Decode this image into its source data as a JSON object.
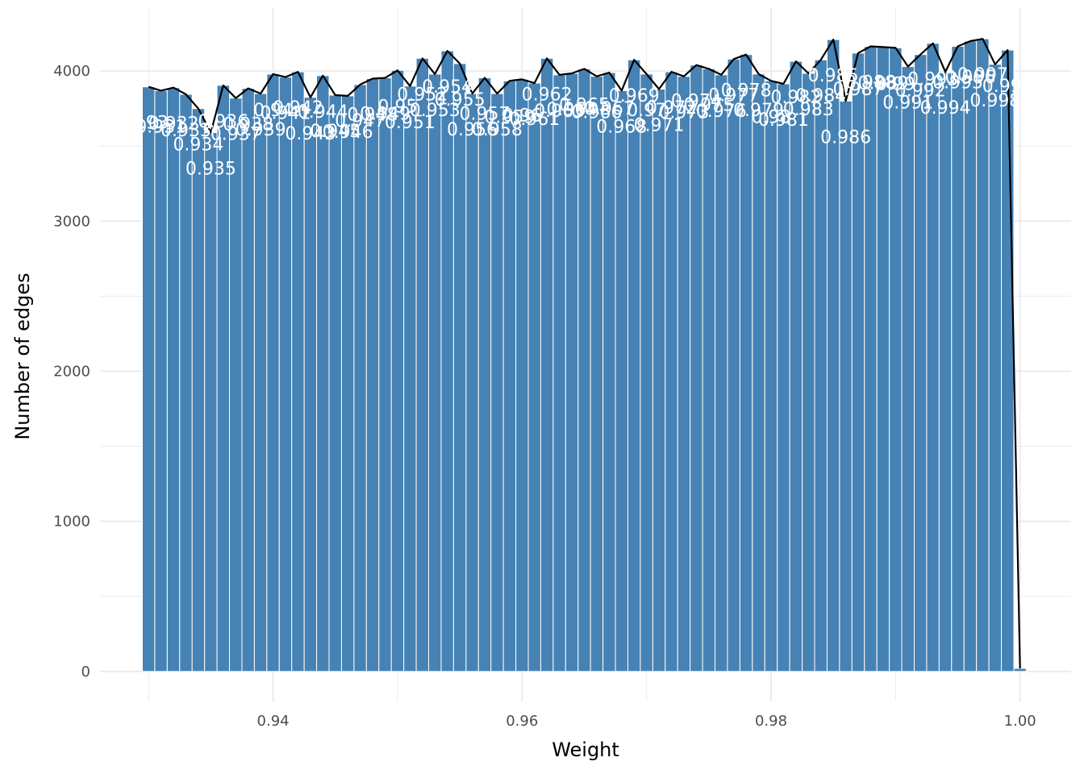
{
  "chart_data": {
    "type": "bar",
    "title": "",
    "xlabel": "Weight",
    "ylabel": "Number of edges",
    "xlim": [
      0.9261,
      1.0041
    ],
    "ylim": [
      -200,
      4420
    ],
    "x_ticks": [
      0.94,
      0.96,
      0.98,
      1.0
    ],
    "x_tick_labels": [
      "0.94",
      "0.96",
      "0.98",
      "1.00"
    ],
    "y_ticks": [
      0,
      1000,
      2000,
      3000,
      4000
    ],
    "y_tick_labels": [
      "0",
      "1000",
      "2000",
      "3000",
      "4000"
    ],
    "grid": true,
    "legend": "none",
    "bar_color": "#4682b4",
    "line_color": "#000000",
    "label_color": "#ffffff",
    "bin_width": 0.001,
    "x": [
      0.93,
      0.931,
      0.932,
      0.933,
      0.934,
      0.935,
      0.936,
      0.937,
      0.938,
      0.939,
      0.94,
      0.941,
      0.942,
      0.943,
      0.944,
      0.945,
      0.946,
      0.947,
      0.948,
      0.949,
      0.95,
      0.951,
      0.952,
      0.953,
      0.954,
      0.955,
      0.956,
      0.957,
      0.958,
      0.959,
      0.96,
      0.961,
      0.962,
      0.963,
      0.964,
      0.965,
      0.966,
      0.967,
      0.968,
      0.969,
      0.97,
      0.971,
      0.972,
      0.973,
      0.974,
      0.975,
      0.976,
      0.977,
      0.978,
      0.979,
      0.98,
      0.981,
      0.982,
      0.983,
      0.984,
      0.985,
      0.986,
      0.987,
      0.988,
      0.989,
      0.99,
      0.991,
      0.992,
      0.993,
      0.994,
      0.995,
      0.996,
      0.997,
      0.998,
      0.999,
      1.0
    ],
    "values": [
      3895,
      3870,
      3890,
      3845,
      3750,
      3590,
      3905,
      3820,
      3885,
      3850,
      3980,
      3960,
      3995,
      3825,
      3970,
      3840,
      3835,
      3910,
      3950,
      3955,
      4005,
      3900,
      4085,
      3980,
      4135,
      4050,
      3850,
      3955,
      3850,
      3935,
      3945,
      3920,
      4085,
      3975,
      3985,
      4015,
      3965,
      3990,
      3870,
      4075,
      3980,
      3880,
      3995,
      3965,
      4040,
      4015,
      3975,
      4080,
      4110,
      3980,
      3935,
      3915,
      4065,
      3985,
      4075,
      4210,
      3800,
      4120,
      4165,
      4160,
      4155,
      4030,
      4110,
      4185,
      3995,
      4165,
      4200,
      4215,
      4045,
      4140,
      20
    ],
    "labels": [
      "0.93",
      "0.931",
      "0.932",
      "0.933",
      "0.934",
      "0.935",
      "0.936",
      "0.937",
      "0.938",
      "0.939",
      "0.94",
      "0.941",
      "0.942",
      "0.943",
      "0.944",
      "0.945",
      "0.946",
      "0.947",
      "0.948",
      "0.949",
      "0.95",
      "0.951",
      "0.952",
      "0.953",
      "0.954",
      "0.955",
      "0.956",
      "0.957",
      "0.958",
      "0.959",
      "0.96",
      "0.961",
      "0.962",
      "0.963",
      "0.964",
      "0.965",
      "0.966",
      "0.967",
      "0.968",
      "0.969",
      "0.97",
      "0.971",
      "0.972",
      "0.973",
      "0.974",
      "0.975",
      "0.976",
      "0.977",
      "0.978",
      "0.979",
      "0.98",
      "0.981",
      "0.982",
      "0.983",
      "0.984",
      "0.985",
      "0.986",
      "0.987",
      "0.988",
      "0.989",
      "0.99",
      "0.991",
      "0.992",
      "0.993",
      "0.994",
      "0.995",
      "0.996",
      "0.997",
      "0.998",
      "0.999",
      ""
    ]
  }
}
